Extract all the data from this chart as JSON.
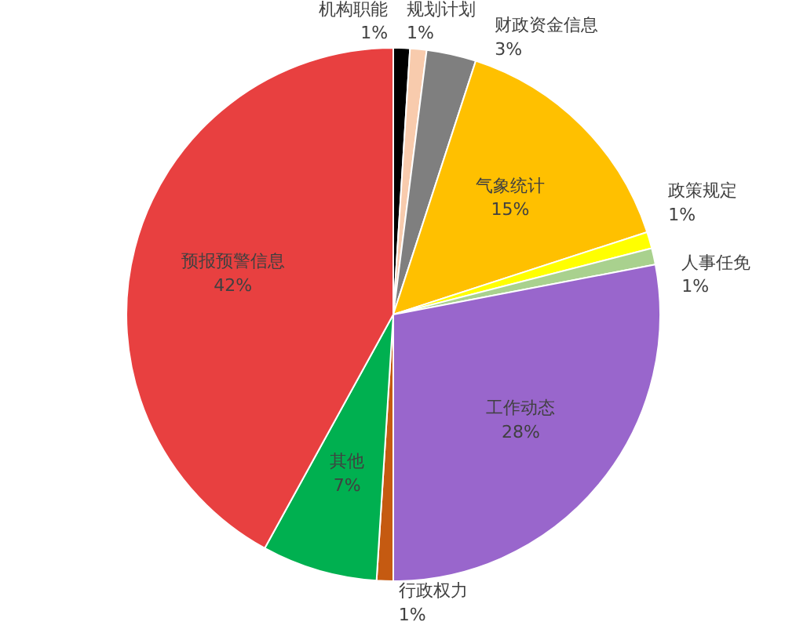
{
  "chart_data": {
    "type": "pie",
    "categories": [
      "机构职能",
      "规划计划",
      "财政资金信息",
      "气象统计",
      "政策规定",
      "人事任免",
      "工作动态",
      "行政权力",
      "其他",
      "预报预警信息"
    ],
    "values": [
      1,
      1,
      3,
      15,
      1,
      1,
      28,
      1,
      7,
      42
    ],
    "value_labels": [
      "1%",
      "1%",
      "3%",
      "15%",
      "1%",
      "1%",
      "28%",
      "1%",
      "7%",
      "42%"
    ],
    "colors": [
      "#000000",
      "#f8cbad",
      "#7f7f7f",
      "#ffc000",
      "#ffff00",
      "#a9d18e",
      "#9966cc",
      "#c55a11",
      "#00b050",
      "#e84040"
    ]
  }
}
